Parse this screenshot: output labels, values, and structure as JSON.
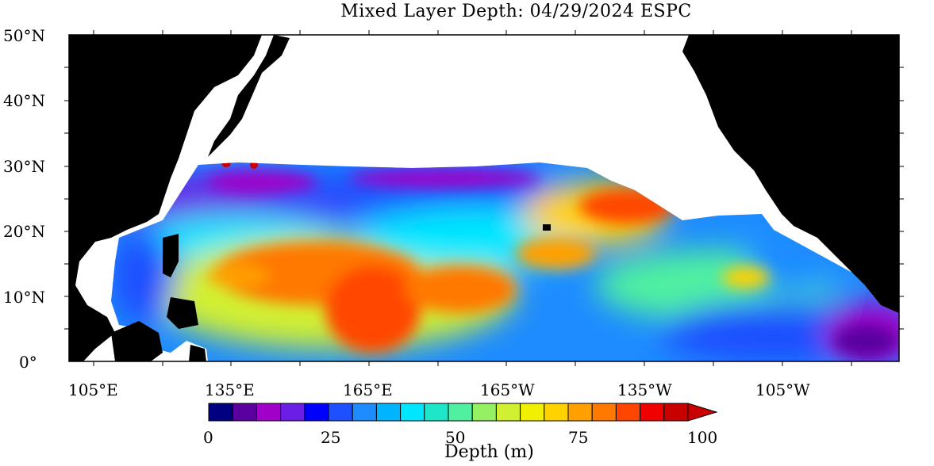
{
  "title": "Mixed Layer Depth: 04/29/2024 ESPC",
  "lat_labels": [
    "50°N",
    "40°N",
    "30°N",
    "20°N",
    "10°N",
    "0°"
  ],
  "lon_labels": [
    "105°E",
    "135°E",
    "165°E",
    "165°W",
    "135°W",
    "105°W"
  ],
  "colorbar": {
    "title": "Depth (m)",
    "ticks": [
      "0",
      "25",
      "50",
      "75",
      "100"
    ],
    "colors": [
      "#000080",
      "#5a00a0",
      "#a000c8",
      "#6a1ee6",
      "#0000ff",
      "#1e50ff",
      "#1e8cff",
      "#00b4ff",
      "#00e6ff",
      "#1ee6c8",
      "#50f0a0",
      "#96f064",
      "#d2f032",
      "#f0f000",
      "#ffd200",
      "#ffa000",
      "#ff7800",
      "#ff4600",
      "#f00000",
      "#c80000"
    ],
    "min": 0,
    "max": 100,
    "extend": "max"
  },
  "colors": {
    "land": "#000000",
    "no_data": "#ffffff",
    "frame": "#000000"
  }
}
